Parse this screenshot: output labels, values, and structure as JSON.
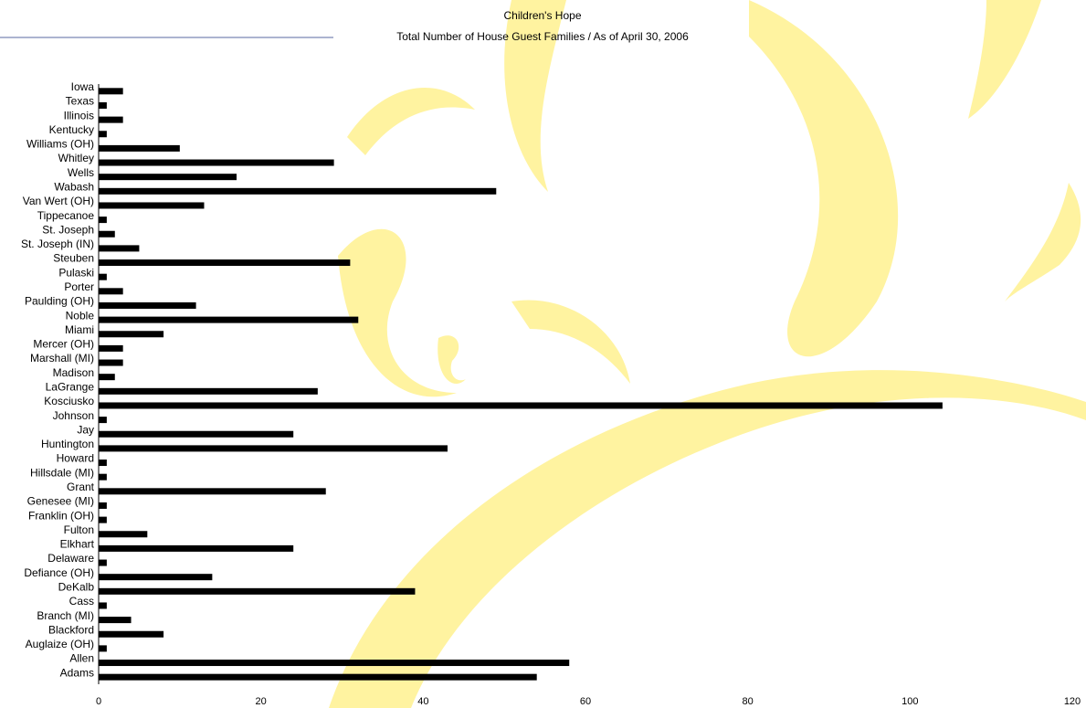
{
  "chart_data": {
    "type": "barh",
    "title": "Children's Hope",
    "subtitle": "Total Number of House Guest Families / As of April 30, 2006",
    "categories": [
      "Iowa",
      "Texas",
      "Illinois",
      "Kentucky",
      "Williams (OH)",
      "Whitley",
      "Wells",
      "Wabash",
      "Van Wert (OH)",
      "Tippecanoe",
      "St. Joseph",
      "St. Joseph (IN)",
      "Steuben",
      "Pulaski",
      "Porter",
      "Paulding (OH)",
      "Noble",
      "Miami",
      "Mercer (OH)",
      "Marshall (MI)",
      "Madison",
      "LaGrange",
      "Kosciusko",
      "Johnson",
      "Jay",
      "Huntington",
      "Howard",
      "Hillsdale (MI)",
      "Grant",
      "Genesee (MI)",
      "Franklin (OH)",
      "Fulton",
      "Elkhart",
      "Delaware",
      "Defiance (OH)",
      "DeKalb",
      "Cass",
      "Branch (MI)",
      "Blackford",
      "Auglaize (OH)",
      "Allen",
      "Adams"
    ],
    "values": [
      3,
      1,
      3,
      1,
      10,
      29,
      17,
      49,
      13,
      1,
      2,
      5,
      31,
      1,
      3,
      12,
      32,
      8,
      3,
      3,
      2,
      27,
      104,
      1,
      24,
      43,
      1,
      1,
      28,
      1,
      1,
      6,
      24,
      1,
      14,
      39,
      1,
      4,
      8,
      1,
      58,
      54
    ],
    "color": "#000000",
    "xlim": [
      0,
      120
    ],
    "xticks": [
      0,
      20,
      40,
      60,
      80,
      100,
      120
    ]
  }
}
